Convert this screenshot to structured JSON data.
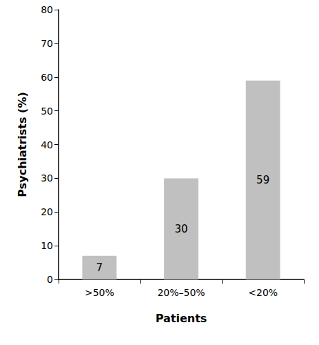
{
  "chart_data": {
    "type": "bar",
    "categories": [
      ">50%",
      "20%–50%",
      "<20%"
    ],
    "values": [
      7,
      30,
      59
    ],
    "color": "#c0c0c0",
    "x_label": "Patients",
    "y_label": "Psychiatrists (%)",
    "ylim": [
      0,
      80
    ],
    "yticks": [
      0,
      10,
      20,
      30,
      40,
      50,
      60,
      70,
      80
    ],
    "grid": false,
    "data_labels": true
  }
}
